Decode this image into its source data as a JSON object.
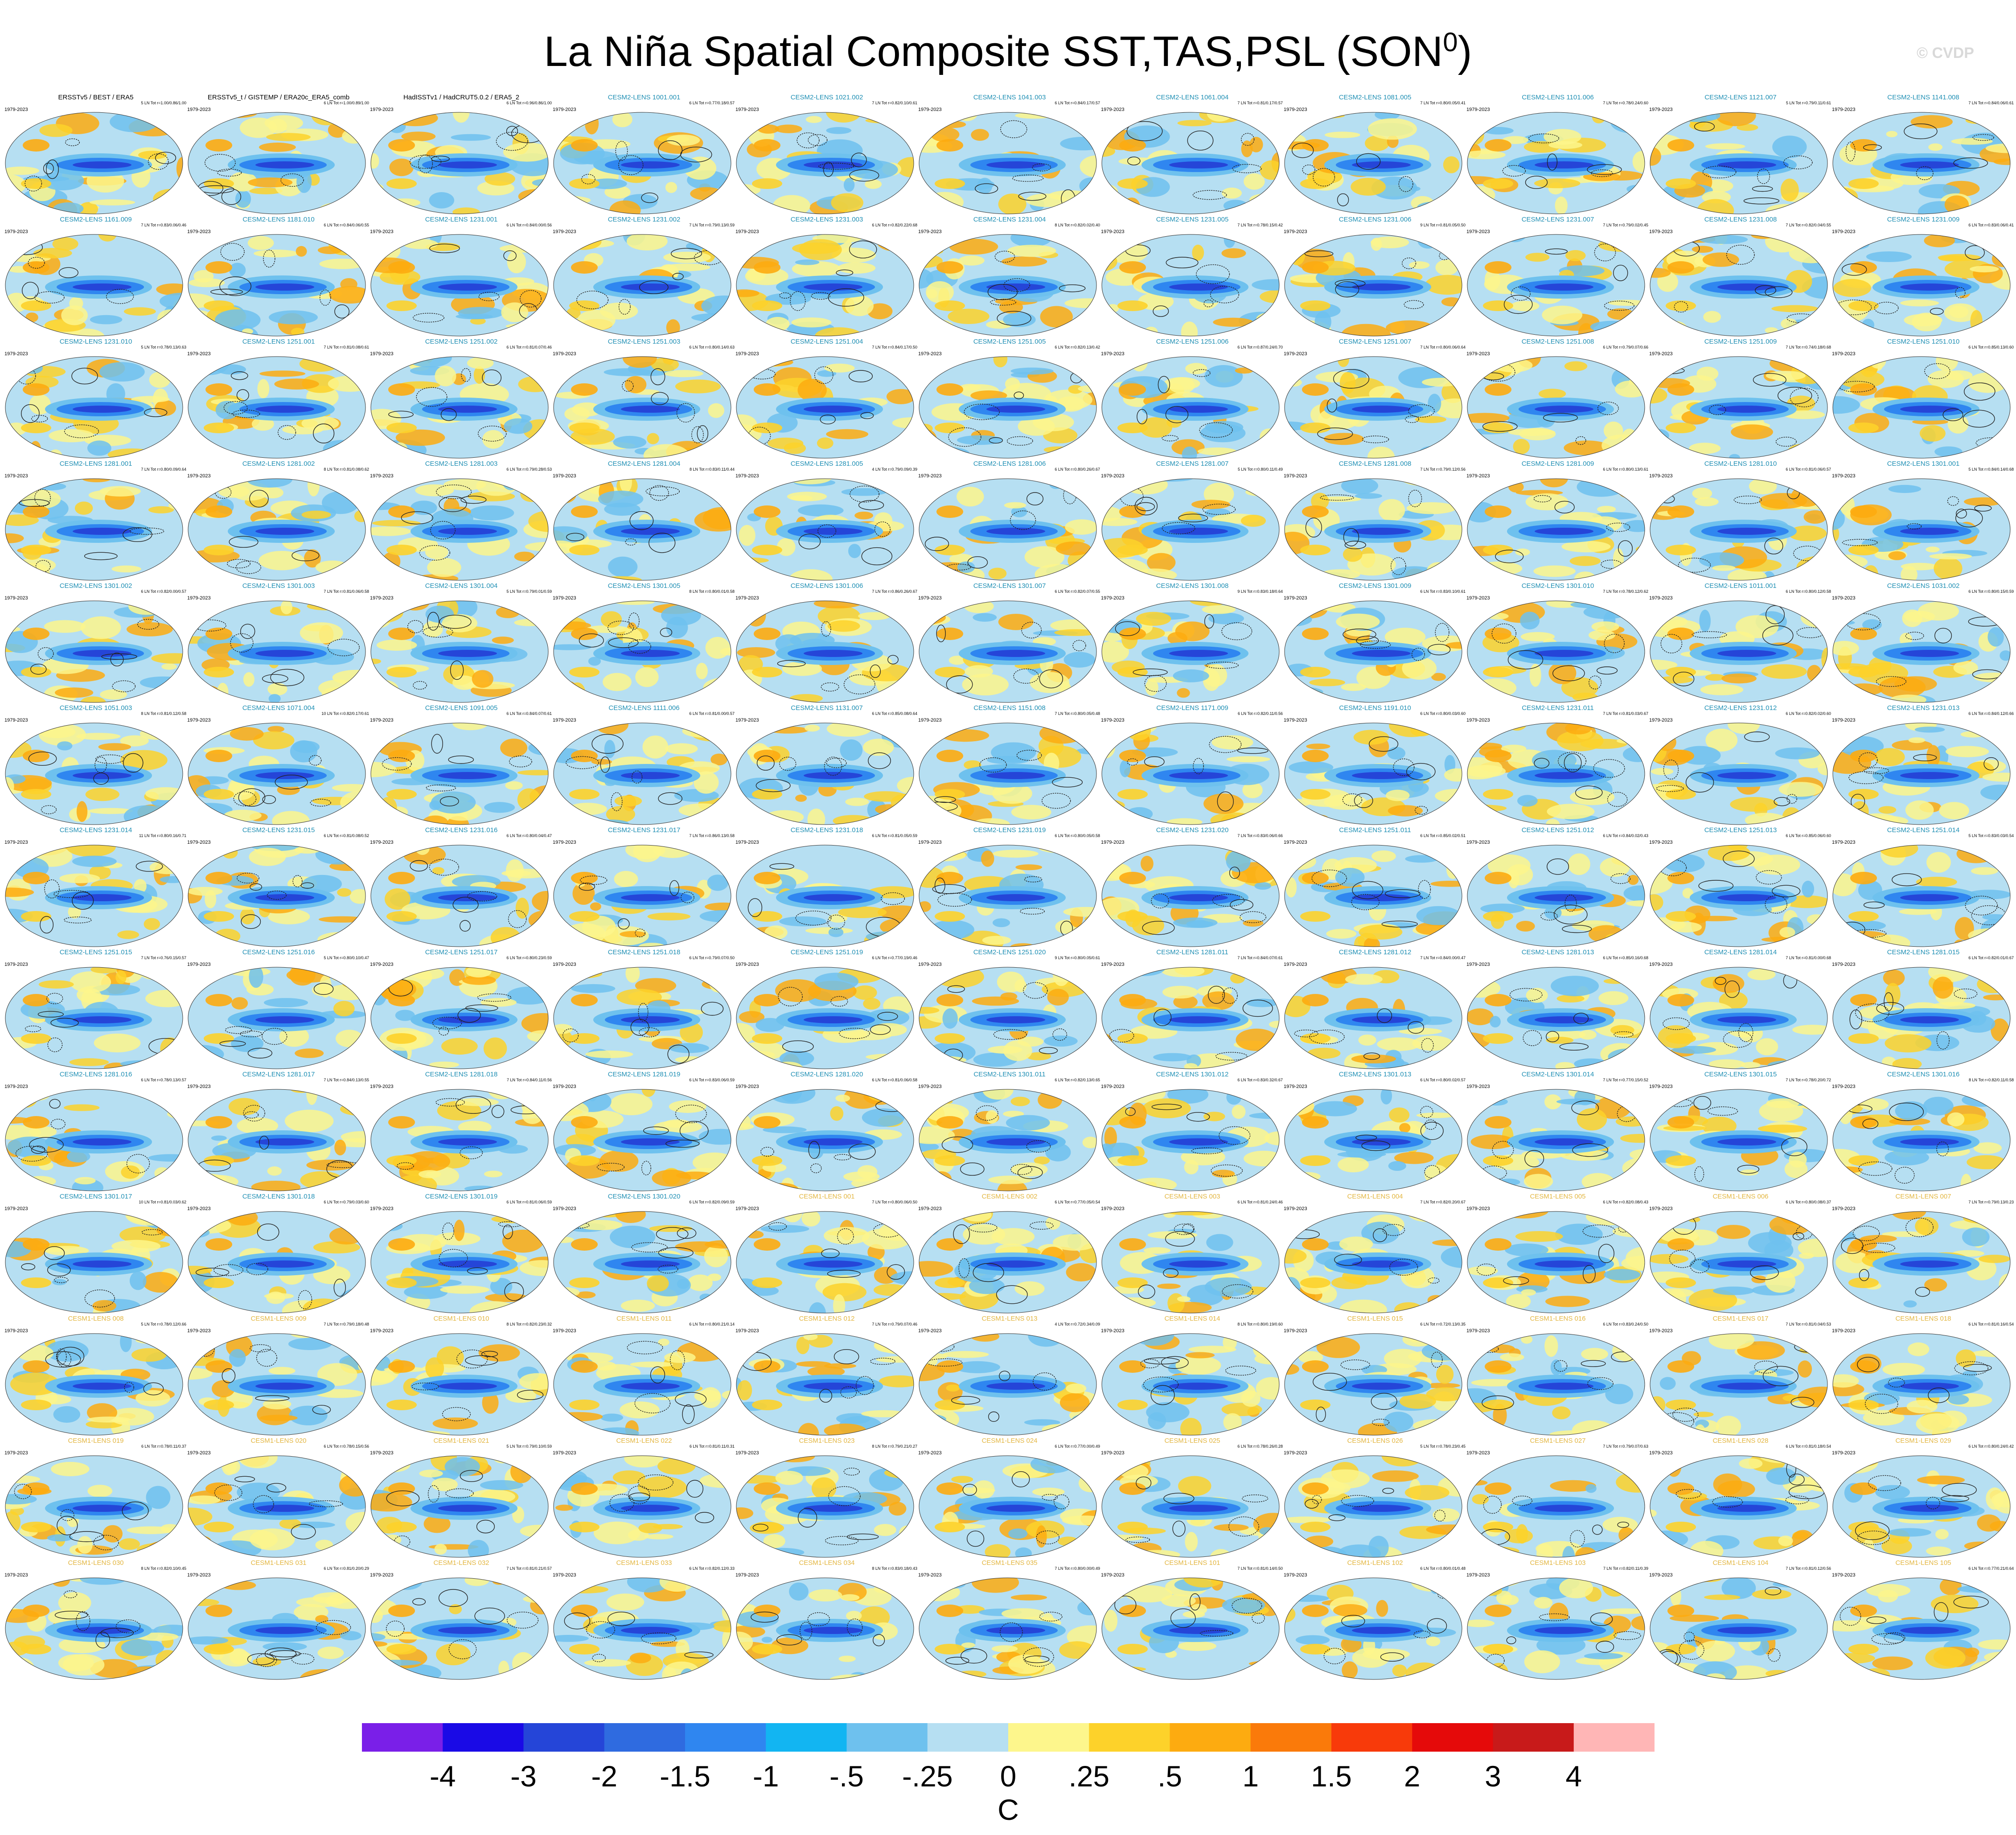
{
  "title": {
    "main": "La Niña Spatial Composite SST,TAS,PSL (SON",
    "sup": "0",
    "close": ")"
  },
  "copyright": "© CVDP",
  "period": "1979-2023",
  "chart_data": {
    "type": "heatmap",
    "description_grid": {
      "rows": 13,
      "cols": 11
    },
    "panels": [
      {
        "name": "ERSSTv5 / BEST / ERA5",
        "kind": "obs",
        "stats": "5 LN Tot r=1.00/0.86/1.00"
      },
      {
        "name": "ERSSTv5_t / GISTEMP / ERA20c_ERA5_comb",
        "kind": "obs",
        "stats": "6 LN Tot r=1.00/0.89/1.00"
      },
      {
        "name": "HadISSTv1 / HadCRUT5.0.2 / ERA5_2",
        "kind": "obs",
        "stats": "6 LN Tot r=0.96/0.86/1.00"
      },
      {
        "name": "CESM2-LENS 1001.001",
        "kind": "cesm2",
        "stats": "6 LN Tot r=0.77/0.18/0.57"
      },
      {
        "name": "CESM2-LENS 1021.002",
        "kind": "cesm2",
        "stats": "7 LN Tot r=0.82/0.10/0.61"
      },
      {
        "name": "CESM2-LENS 1041.003",
        "kind": "cesm2",
        "stats": "6 LN Tot r=0.84/0.17/0.57"
      },
      {
        "name": "CESM2-LENS 1061.004",
        "kind": "cesm2",
        "stats": "7 LN Tot r=0.81/0.17/0.57"
      },
      {
        "name": "CESM2-LENS 1081.005",
        "kind": "cesm2",
        "stats": "7 LN Tot r=0.80/0.05/0.41"
      },
      {
        "name": "CESM2-LENS 1101.006",
        "kind": "cesm2",
        "stats": "7 LN Tot r=0.78/0.24/0.60"
      },
      {
        "name": "CESM2-LENS 1121.007",
        "kind": "cesm2",
        "stats": "5 LN Tot r=0.79/0.11/0.61"
      },
      {
        "name": "CESM2-LENS 1141.008",
        "kind": "cesm2",
        "stats": "7 LN Tot r=0.84/0.06/0.61"
      },
      {
        "name": "CESM2-LENS 1161.009",
        "kind": "cesm2",
        "stats": "7 LN Tot r=0.83/0.06/0.46"
      },
      {
        "name": "CESM2-LENS 1181.010",
        "kind": "cesm2",
        "stats": "6 LN Tot r=0.84/0.06/0.55"
      },
      {
        "name": "CESM2-LENS 1231.001",
        "kind": "cesm2",
        "stats": "6 LN Tot r=0.84/0.00/0.56"
      },
      {
        "name": "CESM2-LENS 1231.002",
        "kind": "cesm2",
        "stats": "7 LN Tot r=0.79/0.13/0.59"
      },
      {
        "name": "CESM2-LENS 1231.003",
        "kind": "cesm2",
        "stats": "6 LN Tot r=0.82/0.22/0.68"
      },
      {
        "name": "CESM2-LENS 1231.004",
        "kind": "cesm2",
        "stats": "8 LN Tot r=0.82/0.02/0.40"
      },
      {
        "name": "CESM2-LENS 1231.005",
        "kind": "cesm2",
        "stats": "7 LN Tot r=0.78/0.15/0.42"
      },
      {
        "name": "CESM2-LENS 1231.006",
        "kind": "cesm2",
        "stats": "9 LN Tot r=0.81/0.05/0.50"
      },
      {
        "name": "CESM2-LENS 1231.007",
        "kind": "cesm2",
        "stats": "7 LN Tot r=0.79/0.02/0.45"
      },
      {
        "name": "CESM2-LENS 1231.008",
        "kind": "cesm2",
        "stats": "7 LN Tot r=0.82/0.04/0.55"
      },
      {
        "name": "CESM2-LENS 1231.009",
        "kind": "cesm2",
        "stats": "6 LN Tot r=0.83/0.06/0.41"
      },
      {
        "name": "CESM2-LENS 1231.010",
        "kind": "cesm2",
        "stats": "5 LN Tot r=0.78/0.13/0.63"
      },
      {
        "name": "CESM2-LENS 1251.001",
        "kind": "cesm2",
        "stats": "7 LN Tot r=0.81/0.08/0.61"
      },
      {
        "name": "CESM2-LENS 1251.002",
        "kind": "cesm2",
        "stats": "6 LN Tot r=0.81/0.07/0.46"
      },
      {
        "name": "CESM2-LENS 1251.003",
        "kind": "cesm2",
        "stats": "6 LN Tot r=0.80/0.14/0.63"
      },
      {
        "name": "CESM2-LENS 1251.004",
        "kind": "cesm2",
        "stats": "7 LN Tot r=0.84/0.17/0.50"
      },
      {
        "name": "CESM2-LENS 1251.005",
        "kind": "cesm2",
        "stats": "6 LN Tot r=0.82/0.13/0.42"
      },
      {
        "name": "CESM2-LENS 1251.006",
        "kind": "cesm2",
        "stats": "6 LN Tot r=0.87/0.24/0.70"
      },
      {
        "name": "CESM2-LENS 1251.007",
        "kind": "cesm2",
        "stats": "7 LN Tot r=0.80/0.06/0.64"
      },
      {
        "name": "CESM2-LENS 1251.008",
        "kind": "cesm2",
        "stats": "6 LN Tot r=0.79/0.07/0.66"
      },
      {
        "name": "CESM2-LENS 1251.009",
        "kind": "cesm2",
        "stats": "7 LN Tot r=0.74/0.18/0.68"
      },
      {
        "name": "CESM2-LENS 1251.010",
        "kind": "cesm2",
        "stats": "6 LN Tot r=0.85/0.13/0.60"
      },
      {
        "name": "CESM2-LENS 1281.001",
        "kind": "cesm2",
        "stats": "7 LN Tot r=0.80/0.09/0.64"
      },
      {
        "name": "CESM2-LENS 1281.002",
        "kind": "cesm2",
        "stats": "8 LN Tot r=0.81/0.08/0.62"
      },
      {
        "name": "CESM2-LENS 1281.003",
        "kind": "cesm2",
        "stats": "6 LN Tot r=0.79/0.28/0.53"
      },
      {
        "name": "CESM2-LENS 1281.004",
        "kind": "cesm2",
        "stats": "8 LN Tot r=0.83/0.11/0.44"
      },
      {
        "name": "CESM2-LENS 1281.005",
        "kind": "cesm2",
        "stats": "4 LN Tot r=0.79/0.09/0.39"
      },
      {
        "name": "CESM2-LENS 1281.006",
        "kind": "cesm2",
        "stats": "6 LN Tot r=0.80/0.26/0.67"
      },
      {
        "name": "CESM2-LENS 1281.007",
        "kind": "cesm2",
        "stats": "5 LN Tot r=0.80/0.11/0.49"
      },
      {
        "name": "CESM2-LENS 1281.008",
        "kind": "cesm2",
        "stats": "7 LN Tot r=0.79/0.12/0.56"
      },
      {
        "name": "CESM2-LENS 1281.009",
        "kind": "cesm2",
        "stats": "6 LN Tot r=0.80/0.13/0.61"
      },
      {
        "name": "CESM2-LENS 1281.010",
        "kind": "cesm2",
        "stats": "6 LN Tot r=0.81/0.06/0.57"
      },
      {
        "name": "CESM2-LENS 1301.001",
        "kind": "cesm2",
        "stats": "5 LN Tot r=0.84/0.14/0.68"
      },
      {
        "name": "CESM2-LENS 1301.002",
        "kind": "cesm2",
        "stats": "6 LN Tot r=0.82/0.00/0.57"
      },
      {
        "name": "CESM2-LENS 1301.003",
        "kind": "cesm2",
        "stats": "7 LN Tot r=0.81/0.06/0.58"
      },
      {
        "name": "CESM2-LENS 1301.004",
        "kind": "cesm2",
        "stats": "5 LN Tot r=0.79/0.01/0.59"
      },
      {
        "name": "CESM2-LENS 1301.005",
        "kind": "cesm2",
        "stats": "8 LN Tot r=0.80/0.01/0.58"
      },
      {
        "name": "CESM2-LENS 1301.006",
        "kind": "cesm2",
        "stats": "7 LN Tot r=0.86/0.26/0.67"
      },
      {
        "name": "CESM2-LENS 1301.007",
        "kind": "cesm2",
        "stats": "6 LN Tot r=0.82/0.07/0.55"
      },
      {
        "name": "CESM2-LENS 1301.008",
        "kind": "cesm2",
        "stats": "9 LN Tot r=0.83/0.18/0.64"
      },
      {
        "name": "CESM2-LENS 1301.009",
        "kind": "cesm2",
        "stats": "6 LN Tot r=0.83/0.10/0.61"
      },
      {
        "name": "CESM2-LENS 1301.010",
        "kind": "cesm2",
        "stats": "7 LN Tot r=0.78/0.12/0.62"
      },
      {
        "name": "CESM2-LENS 1011.001",
        "kind": "cesm2",
        "stats": "6 LN Tot r=0.80/0.12/0.58"
      },
      {
        "name": "CESM2-LENS 1031.002",
        "kind": "cesm2",
        "stats": "6 LN Tot r=0.80/0.15/0.59"
      },
      {
        "name": "CESM2-LENS 1051.003",
        "kind": "cesm2",
        "stats": "8 LN Tot r=0.81/0.12/0.58"
      },
      {
        "name": "CESM2-LENS 1071.004",
        "kind": "cesm2",
        "stats": "10 LN Tot r=0.82/0.17/0.61"
      },
      {
        "name": "CESM2-LENS 1091.005",
        "kind": "cesm2",
        "stats": "6 LN Tot r=0.84/0.07/0.61"
      },
      {
        "name": "CESM2-LENS 1111.006",
        "kind": "cesm2",
        "stats": "6 LN Tot r=0.81/0.00/0.57"
      },
      {
        "name": "CESM2-LENS 1131.007",
        "kind": "cesm2",
        "stats": "6 LN Tot r=0.85/0.08/0.64"
      },
      {
        "name": "CESM2-LENS 1151.008",
        "kind": "cesm2",
        "stats": "7 LN Tot r=0.80/0.05/0.48"
      },
      {
        "name": "CESM2-LENS 1171.009",
        "kind": "cesm2",
        "stats": "6 LN Tot r=0.82/0.11/0.56"
      },
      {
        "name": "CESM2-LENS 1191.010",
        "kind": "cesm2",
        "stats": "6 LN Tot r=0.80/0.03/0.60"
      },
      {
        "name": "CESM2-LENS 1231.011",
        "kind": "cesm2",
        "stats": "7 LN Tot r=0.81/0.03/0.67"
      },
      {
        "name": "CESM2-LENS 1231.012",
        "kind": "cesm2",
        "stats": "6 LN Tot r=0.82/0.02/0.60"
      },
      {
        "name": "CESM2-LENS 1231.013",
        "kind": "cesm2",
        "stats": "6 LN Tot r=0.84/0.12/0.66"
      },
      {
        "name": "CESM2-LENS 1231.014",
        "kind": "cesm2",
        "stats": "11 LN Tot r=0.80/0.16/0.71"
      },
      {
        "name": "CESM2-LENS 1231.015",
        "kind": "cesm2",
        "stats": "6 LN Tot r=0.81/0.08/0.52"
      },
      {
        "name": "CESM2-LENS 1231.016",
        "kind": "cesm2",
        "stats": "6 LN Tot r=0.80/0.04/0.47"
      },
      {
        "name": "CESM2-LENS 1231.017",
        "kind": "cesm2",
        "stats": "7 LN Tot r=0.86/0.13/0.58"
      },
      {
        "name": "CESM2-LENS 1231.018",
        "kind": "cesm2",
        "stats": "6 LN Tot r=0.81/0.05/0.59"
      },
      {
        "name": "CESM2-LENS 1231.019",
        "kind": "cesm2",
        "stats": "6 LN Tot r=0.80/0.05/0.58"
      },
      {
        "name": "CESM2-LENS 1231.020",
        "kind": "cesm2",
        "stats": "7 LN Tot r=0.83/0.06/0.66"
      },
      {
        "name": "CESM2-LENS 1251.011",
        "kind": "cesm2",
        "stats": "6 LN Tot r=0.85/0.02/0.51"
      },
      {
        "name": "CESM2-LENS 1251.012",
        "kind": "cesm2",
        "stats": "6 LN Tot r=0.84/0.02/0.43"
      },
      {
        "name": "CESM2-LENS 1251.013",
        "kind": "cesm2",
        "stats": "6 LN Tot r=0.85/0.06/0.60"
      },
      {
        "name": "CESM2-LENS 1251.014",
        "kind": "cesm2",
        "stats": "5 LN Tot r=0.83/0.03/0.54"
      },
      {
        "name": "CESM2-LENS 1251.015",
        "kind": "cesm2",
        "stats": "7 LN Tot r=0.76/0.15/0.57"
      },
      {
        "name": "CESM2-LENS 1251.016",
        "kind": "cesm2",
        "stats": "5 LN Tot r=0.80/0.10/0.47"
      },
      {
        "name": "CESM2-LENS 1251.017",
        "kind": "cesm2",
        "stats": "6 LN Tot r=0.80/0.23/0.59"
      },
      {
        "name": "CESM2-LENS 1251.018",
        "kind": "cesm2",
        "stats": "6 LN Tot r=0.79/0.07/0.50"
      },
      {
        "name": "CESM2-LENS 1251.019",
        "kind": "cesm2",
        "stats": "6 LN Tot r=0.77/0.19/0.46"
      },
      {
        "name": "CESM2-LENS 1251.020",
        "kind": "cesm2",
        "stats": "9 LN Tot r=0.80/0.05/0.61"
      },
      {
        "name": "CESM2-LENS 1281.011",
        "kind": "cesm2",
        "stats": "7 LN Tot r=0.84/0.07/0.61"
      },
      {
        "name": "CESM2-LENS 1281.012",
        "kind": "cesm2",
        "stats": "7 LN Tot r=0.84/0.00/0.47"
      },
      {
        "name": "CESM2-LENS 1281.013",
        "kind": "cesm2",
        "stats": "6 LN Tot r=0.85/0.16/0.68"
      },
      {
        "name": "CESM2-LENS 1281.014",
        "kind": "cesm2",
        "stats": "7 LN Tot r=0.81/0.00/0.68"
      },
      {
        "name": "CESM2-LENS 1281.015",
        "kind": "cesm2",
        "stats": "6 LN Tot r=0.82/0.01/0.67"
      },
      {
        "name": "CESM2-LENS 1281.016",
        "kind": "cesm2",
        "stats": "6 LN Tot r=0.78/0.13/0.57"
      },
      {
        "name": "CESM2-LENS 1281.017",
        "kind": "cesm2",
        "stats": "7 LN Tot r=0.84/0.13/0.55"
      },
      {
        "name": "CESM2-LENS 1281.018",
        "kind": "cesm2",
        "stats": "7 LN Tot r=0.84/0.11/0.56"
      },
      {
        "name": "CESM2-LENS 1281.019",
        "kind": "cesm2",
        "stats": "6 LN Tot r=0.83/0.06/0.59"
      },
      {
        "name": "CESM2-LENS 1281.020",
        "kind": "cesm2",
        "stats": "6 LN Tot r=0.81/0.06/0.58"
      },
      {
        "name": "CESM2-LENS 1301.011",
        "kind": "cesm2",
        "stats": "6 LN Tot r=0.82/0.13/0.65"
      },
      {
        "name": "CESM2-LENS 1301.012",
        "kind": "cesm2",
        "stats": "6 LN Tot r=0.83/0.32/0.67"
      },
      {
        "name": "CESM2-LENS 1301.013",
        "kind": "cesm2",
        "stats": "6 LN Tot r=0.80/0.02/0.57"
      },
      {
        "name": "CESM2-LENS 1301.014",
        "kind": "cesm2",
        "stats": "7 LN Tot r=0.77/0.15/0.52"
      },
      {
        "name": "CESM2-LENS 1301.015",
        "kind": "cesm2",
        "stats": "7 LN Tot r=0.78/0.20/0.72"
      },
      {
        "name": "CESM2-LENS 1301.016",
        "kind": "cesm2",
        "stats": "8 LN Tot r=0.82/0.11/0.58"
      },
      {
        "name": "CESM2-LENS 1301.017",
        "kind": "cesm2",
        "stats": "10 LN Tot r=0.81/0.03/0.62"
      },
      {
        "name": "CESM2-LENS 1301.018",
        "kind": "cesm2",
        "stats": "6 LN Tot r=0.79/0.03/0.60"
      },
      {
        "name": "CESM2-LENS 1301.019",
        "kind": "cesm2",
        "stats": "6 LN Tot r=0.81/0.06/0.59"
      },
      {
        "name": "CESM2-LENS 1301.020",
        "kind": "cesm2",
        "stats": "6 LN Tot r=0.82/0.09/0.59"
      },
      {
        "name": "CESM1-LENS 001",
        "kind": "cesm1",
        "stats": "7 LN Tot r=0.80/0.06/0.50"
      },
      {
        "name": "CESM1-LENS 002",
        "kind": "cesm1",
        "stats": "6 LN Tot r=0.77/0.05/0.54"
      },
      {
        "name": "CESM1-LENS 003",
        "kind": "cesm1",
        "stats": "6 LN Tot r=0.81/0.24/0.46"
      },
      {
        "name": "CESM1-LENS 004",
        "kind": "cesm1",
        "stats": "7 LN Tot r=0.82/0.20/0.67"
      },
      {
        "name": "CESM1-LENS 005",
        "kind": "cesm1",
        "stats": "6 LN Tot r=0.82/0.08/0.43"
      },
      {
        "name": "CESM1-LENS 006",
        "kind": "cesm1",
        "stats": "6 LN Tot r=0.80/0.08/0.37"
      },
      {
        "name": "CESM1-LENS 007",
        "kind": "cesm1",
        "stats": "7 LN Tot r=0.79/0.13/0.23"
      },
      {
        "name": "CESM1-LENS 008",
        "kind": "cesm1",
        "stats": "5 LN Tot r=0.78/0.12/0.66"
      },
      {
        "name": "CESM1-LENS 009",
        "kind": "cesm1",
        "stats": "7 LN Tot r=0.79/0.18/0.48"
      },
      {
        "name": "CESM1-LENS 010",
        "kind": "cesm1",
        "stats": "8 LN Tot r=0.82/0.23/0.32"
      },
      {
        "name": "CESM1-LENS 011",
        "kind": "cesm1",
        "stats": "6 LN Tot r=0.80/0.21/0.14"
      },
      {
        "name": "CESM1-LENS 012",
        "kind": "cesm1",
        "stats": "7 LN Tot r=0.79/0.07/0.46"
      },
      {
        "name": "CESM1-LENS 013",
        "kind": "cesm1",
        "stats": "4 LN Tot r=0.72/0.34/0.09"
      },
      {
        "name": "CESM1-LENS 014",
        "kind": "cesm1",
        "stats": "8 LN Tot r=0.80/0.19/0.60"
      },
      {
        "name": "CESM1-LENS 015",
        "kind": "cesm1",
        "stats": "6 LN Tot r=0.72/0.13/0.35"
      },
      {
        "name": "CESM1-LENS 016",
        "kind": "cesm1",
        "stats": "6 LN Tot r=0.83/0.24/0.50"
      },
      {
        "name": "CESM1-LENS 017",
        "kind": "cesm1",
        "stats": "7 LN Tot r=0.81/0.04/0.53"
      },
      {
        "name": "CESM1-LENS 018",
        "kind": "cesm1",
        "stats": "6 LN Tot r=0.81/0.16/0.54"
      },
      {
        "name": "CESM1-LENS 019",
        "kind": "cesm1",
        "stats": "6 LN Tot r=0.78/0.11/0.37"
      },
      {
        "name": "CESM1-LENS 020",
        "kind": "cesm1",
        "stats": "6 LN Tot r=0.78/0.15/0.56"
      },
      {
        "name": "CESM1-LENS 021",
        "kind": "cesm1",
        "stats": "5 LN Tot r=0.79/0.10/0.59"
      },
      {
        "name": "CESM1-LENS 022",
        "kind": "cesm1",
        "stats": "6 LN Tot r=0.81/0.11/0.31"
      },
      {
        "name": "CESM1-LENS 023",
        "kind": "cesm1",
        "stats": "8 LN Tot r=0.79/0.21/0.27"
      },
      {
        "name": "CESM1-LENS 024",
        "kind": "cesm1",
        "stats": "6 LN Tot r=0.77/0.00/0.49"
      },
      {
        "name": "CESM1-LENS 025",
        "kind": "cesm1",
        "stats": "6 LN Tot r=0.78/0.26/0.28"
      },
      {
        "name": "CESM1-LENS 026",
        "kind": "cesm1",
        "stats": "5 LN Tot r=0.78/0.23/0.45"
      },
      {
        "name": "CESM1-LENS 027",
        "kind": "cesm1",
        "stats": "7 LN Tot r=0.79/0.07/0.63"
      },
      {
        "name": "CESM1-LENS 028",
        "kind": "cesm1",
        "stats": "6 LN Tot r=0.81/0.18/0.54"
      },
      {
        "name": "CESM1-LENS 029",
        "kind": "cesm1",
        "stats": "6 LN Tot r=0.80/0.24/0.42"
      },
      {
        "name": "CESM1-LENS 030",
        "kind": "cesm1",
        "stats": "8 LN Tot r=0.82/0.10/0.45"
      },
      {
        "name": "CESM1-LENS 031",
        "kind": "cesm1",
        "stats": "6 LN Tot r=0.81/0.20/0.29"
      },
      {
        "name": "CESM1-LENS 032",
        "kind": "cesm1",
        "stats": "7 LN Tot r=0.81/0.21/0.57"
      },
      {
        "name": "CESM1-LENS 033",
        "kind": "cesm1",
        "stats": "6 LN Tot r=0.82/0.12/0.33"
      },
      {
        "name": "CESM1-LENS 034",
        "kind": "cesm1",
        "stats": "8 LN Tot r=0.83/0.18/0.43"
      },
      {
        "name": "CESM1-LENS 035",
        "kind": "cesm1",
        "stats": "7 LN Tot r=0.80/0.00/0.49"
      },
      {
        "name": "CESM1-LENS 101",
        "kind": "cesm1",
        "stats": "7 LN Tot r=0.81/0.14/0.50"
      },
      {
        "name": "CESM1-LENS 102",
        "kind": "cesm1",
        "stats": "6 LN Tot r=0.80/0.01/0.48"
      },
      {
        "name": "CESM1-LENS 103",
        "kind": "cesm1",
        "stats": "7 LN Tot r=0.82/0.11/0.39"
      },
      {
        "name": "CESM1-LENS 104",
        "kind": "cesm1",
        "stats": "7 LN Tot r=0.81/0.12/0.56"
      },
      {
        "name": "CESM1-LENS 105",
        "kind": "cesm1",
        "stats": "6 LN Tot r=0.77/0.21/0.64"
      }
    ],
    "title_colors": {
      "obs": "#000000",
      "cesm2": "#1f8fb4",
      "cesm1": "#e3b640"
    },
    "colorbar": {
      "colors": [
        "#7a1fe8",
        "#1a0ae6",
        "#2545d8",
        "#2f6be0",
        "#2f86f0",
        "#12b5f2",
        "#6ec1ee",
        "#b6dff2",
        "#fdf68c",
        "#fdd22a",
        "#fdab10",
        "#fa7a0a",
        "#f83a0a",
        "#e50a0a",
        "#c81a1a",
        "#ffb6b6"
      ],
      "labels": [
        "-4",
        "-3",
        "-2",
        "-1.5",
        "-1",
        "-.5",
        "-.25",
        "0",
        ".25",
        ".5",
        "1",
        "1.5",
        "2",
        "3",
        "4"
      ],
      "units": "C"
    }
  }
}
